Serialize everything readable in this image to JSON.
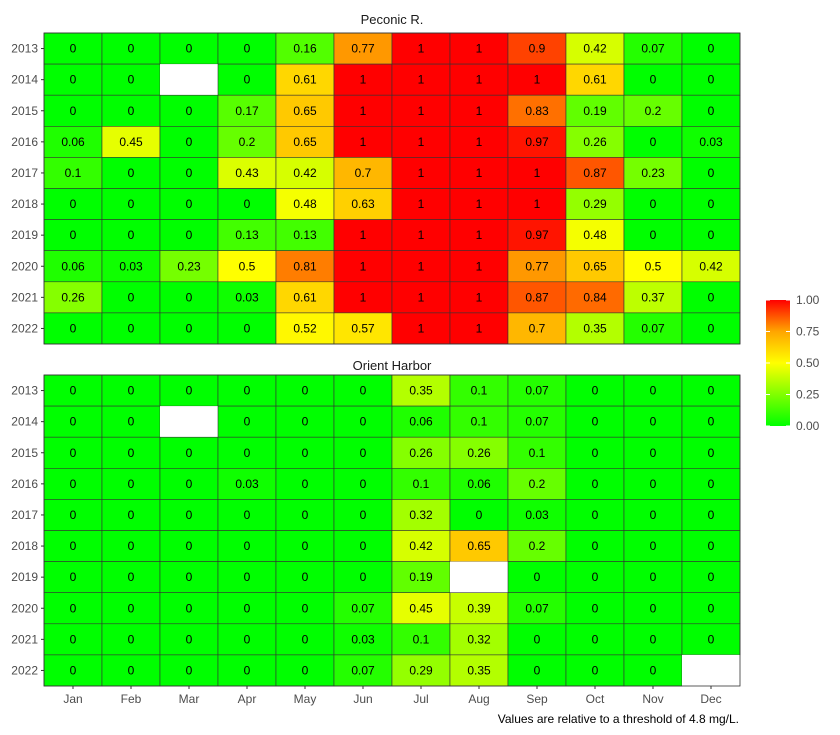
{
  "chart_data": {
    "type": "heatmap",
    "caption": "Values are relative to a threshold of 4.8 mg/L.",
    "months": [
      "Jan",
      "Feb",
      "Mar",
      "Apr",
      "May",
      "Jun",
      "Jul",
      "Aug",
      "Sep",
      "Oct",
      "Nov",
      "Dec"
    ],
    "years": [
      "2013",
      "2014",
      "2015",
      "2016",
      "2017",
      "2018",
      "2019",
      "2020",
      "2021",
      "2022"
    ],
    "color_scale": {
      "min": 0,
      "max": 1,
      "stops": [
        {
          "value": 0,
          "color": "#00FF00"
        },
        {
          "value": 0.5,
          "color": "#FFFF00"
        },
        {
          "value": 0.75,
          "color": "#FFA500"
        },
        {
          "value": 1,
          "color": "#FF0000"
        }
      ],
      "ticks": [
        "0.00",
        "0.25",
        "0.50",
        "0.75",
        "1.00"
      ],
      "missing_color": "#FFFFFF"
    },
    "panels": [
      {
        "title": "Peconic R.",
        "values": [
          [
            0,
            0,
            0,
            0,
            0.16,
            0.77,
            1,
            1,
            0.9,
            0.42,
            0.07,
            0
          ],
          [
            0,
            0,
            null,
            0,
            0.61,
            1,
            1,
            1,
            1,
            0.61,
            0,
            0
          ],
          [
            0,
            0,
            0,
            0.17,
            0.65,
            1,
            1,
            1,
            0.83,
            0.19,
            0.2,
            0
          ],
          [
            0.06,
            0.45,
            0,
            0.2,
            0.65,
            1,
            1,
            1,
            0.97,
            0.26,
            0,
            0.03
          ],
          [
            0.1,
            0,
            0,
            0.43,
            0.42,
            0.7,
            1,
            1,
            1,
            0.87,
            0.23,
            0
          ],
          [
            0,
            0,
            0,
            0,
            0.48,
            0.63,
            1,
            1,
            1,
            0.29,
            0,
            0
          ],
          [
            0,
            0,
            0,
            0.13,
            0.13,
            1,
            1,
            1,
            0.97,
            0.48,
            0,
            0
          ],
          [
            0.06,
            0.03,
            0.23,
            0.5,
            0.81,
            1,
            1,
            1,
            0.77,
            0.65,
            0.5,
            0.42
          ],
          [
            0.26,
            0,
            0,
            0.03,
            0.61,
            1,
            1,
            1,
            0.87,
            0.84,
            0.37,
            0
          ],
          [
            0,
            0,
            0,
            0,
            0.52,
            0.57,
            1,
            1,
            0.7,
            0.35,
            0.07,
            0
          ]
        ]
      },
      {
        "title": "Orient Harbor",
        "values": [
          [
            0,
            0,
            0,
            0,
            0,
            0,
            0.35,
            0.1,
            0.07,
            0,
            0,
            0
          ],
          [
            0,
            0,
            null,
            0,
            0,
            0,
            0.06,
            0.1,
            0.07,
            0,
            0,
            0
          ],
          [
            0,
            0,
            0,
            0,
            0,
            0,
            0.26,
            0.26,
            0.1,
            0,
            0,
            0
          ],
          [
            0,
            0,
            0,
            0.03,
            0,
            0,
            0.1,
            0.06,
            0.2,
            0,
            0,
            0
          ],
          [
            0,
            0,
            0,
            0,
            0,
            0,
            0.32,
            0,
            0.03,
            0,
            0,
            0
          ],
          [
            0,
            0,
            0,
            0,
            0,
            0,
            0.42,
            0.65,
            0.2,
            0,
            0,
            0
          ],
          [
            0,
            0,
            0,
            0,
            0,
            0,
            0.19,
            null,
            0,
            0,
            0,
            0
          ],
          [
            0,
            0,
            0,
            0,
            0,
            0.07,
            0.45,
            0.39,
            0.07,
            0,
            0,
            0
          ],
          [
            0,
            0,
            0,
            0,
            0,
            0.03,
            0.1,
            0.32,
            0,
            0,
            0,
            0
          ],
          [
            0,
            0,
            0,
            0,
            0,
            0.07,
            0.29,
            0.35,
            0,
            0,
            0,
            null
          ]
        ]
      }
    ]
  }
}
